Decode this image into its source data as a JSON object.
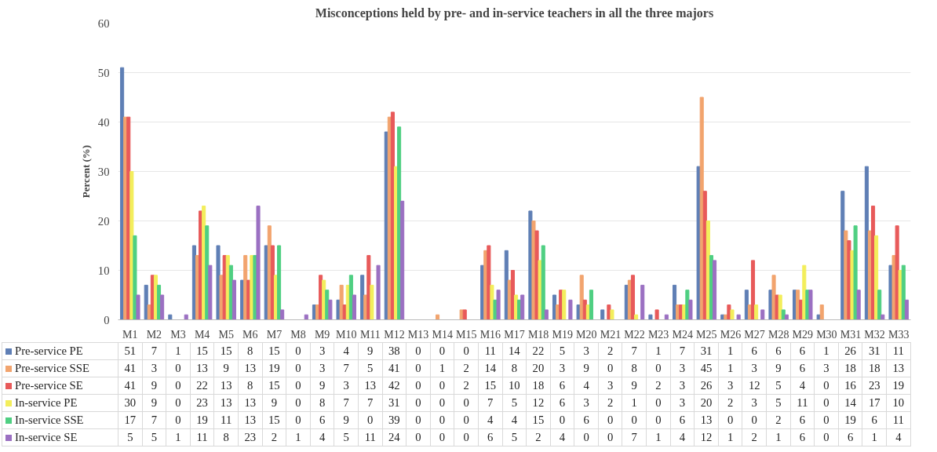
{
  "chart_data": {
    "type": "bar",
    "title": "Misconceptions held by pre- and in-service teachers in all the three majors",
    "ylabel": "Percent (%)",
    "categories": [
      "M1",
      "M2",
      "M3",
      "M4",
      "M5",
      "M6",
      "M7",
      "M8",
      "M9",
      "M10",
      "M11",
      "M12",
      "M13",
      "M14",
      "M15",
      "M16",
      "M17",
      "M18",
      "M19",
      "M20",
      "M21",
      "M22",
      "M23",
      "M24",
      "M25",
      "M26",
      "M27",
      "M28",
      "M29",
      "M30",
      "M31",
      "M32",
      "M33"
    ],
    "series": [
      {
        "name": "Pre-service PE",
        "color": "#5f7fb5",
        "values": [
          51,
          7,
          1,
          15,
          15,
          8,
          15,
          0,
          3,
          4,
          9,
          38,
          0,
          0,
          0,
          11,
          14,
          22,
          5,
          3,
          2,
          7,
          1,
          7,
          31,
          1,
          6,
          6,
          6,
          1,
          26,
          31,
          11
        ]
      },
      {
        "name": "Pre-service SSE",
        "color": "#f2a46e",
        "values": [
          41,
          3,
          0,
          13,
          9,
          13,
          19,
          0,
          3,
          7,
          5,
          41,
          0,
          1,
          2,
          14,
          8,
          20,
          3,
          9,
          0,
          8,
          0,
          3,
          45,
          1,
          3,
          9,
          6,
          3,
          18,
          18,
          13
        ]
      },
      {
        "name": "Pre-service SE",
        "color": "#e85a5a",
        "values": [
          41,
          9,
          0,
          22,
          13,
          8,
          15,
          0,
          9,
          3,
          13,
          42,
          0,
          0,
          2,
          15,
          10,
          18,
          6,
          4,
          3,
          9,
          2,
          3,
          26,
          3,
          12,
          5,
          4,
          0,
          16,
          23,
          19
        ]
      },
      {
        "name": "In-service  PE",
        "color": "#f3ee5c",
        "values": [
          30,
          9,
          0,
          23,
          13,
          13,
          9,
          0,
          8,
          7,
          7,
          31,
          0,
          0,
          0,
          7,
          5,
          12,
          6,
          3,
          2,
          1,
          0,
          3,
          20,
          2,
          3,
          5,
          11,
          0,
          14,
          17,
          10
        ]
      },
      {
        "name": "In-service  SSE",
        "color": "#4fcf82",
        "values": [
          17,
          7,
          0,
          19,
          11,
          13,
          15,
          0,
          6,
          9,
          0,
          39,
          0,
          0,
          0,
          4,
          4,
          15,
          0,
          6,
          0,
          0,
          0,
          6,
          13,
          0,
          0,
          2,
          6,
          0,
          19,
          6,
          11
        ]
      },
      {
        "name": "In-service  SE",
        "color": "#9b70c2",
        "values": [
          5,
          5,
          1,
          11,
          8,
          23,
          2,
          1,
          4,
          5,
          11,
          24,
          0,
          0,
          0,
          6,
          5,
          2,
          4,
          0,
          0,
          7,
          1,
          4,
          12,
          1,
          2,
          1,
          6,
          0,
          6,
          1,
          4
        ]
      }
    ],
    "ylim": [
      0,
      60
    ],
    "yticks": [
      0,
      10,
      20,
      30,
      40,
      50,
      60
    ],
    "grid": "y",
    "legend": "bottom",
    "data_labels": true
  }
}
